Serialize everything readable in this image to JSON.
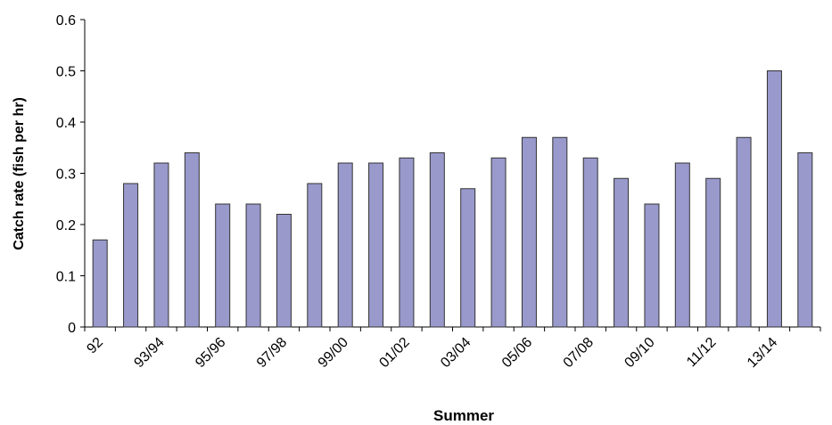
{
  "chart_data": {
    "type": "bar",
    "xlabel": "Summer",
    "ylabel": "Catch rate (fish per hr)",
    "categories": [
      "92",
      null,
      "93/94",
      null,
      "95/96",
      null,
      "97/98",
      null,
      "99/00",
      null,
      "01/02",
      null,
      "03/04",
      null,
      "05/06",
      null,
      "07/08",
      null,
      "09/10",
      null,
      "11/12",
      null,
      "13/14",
      null
    ],
    "values": [
      0.17,
      0.28,
      0.32,
      0.34,
      0.24,
      0.24,
      0.22,
      0.28,
      0.32,
      0.32,
      0.33,
      0.34,
      0.27,
      0.33,
      0.37,
      0.37,
      0.33,
      0.29,
      0.24,
      0.32,
      0.29,
      0.37,
      0.5,
      0.34
    ],
    "color": "#9999cc",
    "ylim": [
      0,
      0.6
    ],
    "yticks": [
      0,
      0.1,
      0.2,
      0.3,
      0.4,
      0.5,
      0.6
    ],
    "grid": false
  }
}
